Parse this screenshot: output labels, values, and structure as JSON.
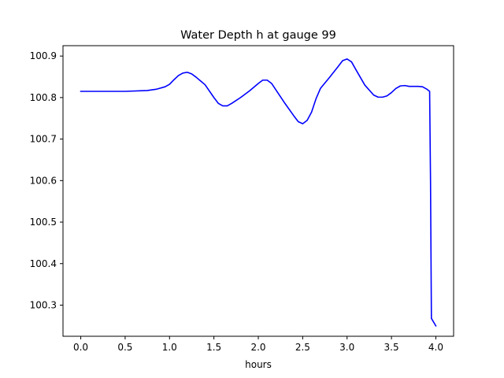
{
  "chart_data": {
    "type": "line",
    "title": "Water Depth h at gauge 99",
    "xlabel": "hours",
    "ylabel": "",
    "xlim": [
      -0.2,
      4.2
    ],
    "ylim": [
      100.225,
      100.925
    ],
    "x_ticks": [
      0.0,
      0.5,
      1.0,
      1.5,
      2.0,
      2.5,
      3.0,
      3.5,
      4.0
    ],
    "x_tick_labels": [
      "0.0",
      "0.5",
      "1.0",
      "1.5",
      "2.0",
      "2.5",
      "3.0",
      "3.5",
      "4.0"
    ],
    "y_ticks": [
      100.3,
      100.4,
      100.5,
      100.6,
      100.7,
      100.8,
      100.9
    ],
    "y_tick_labels": [
      "100.3",
      "100.4",
      "100.5",
      "100.6",
      "100.7",
      "100.8",
      "100.9"
    ],
    "grid": false,
    "series": [
      {
        "color": "#0000ff",
        "x": [
          0.0,
          0.25,
          0.5,
          0.75,
          0.85,
          0.95,
          1.0,
          1.05,
          1.1,
          1.15,
          1.2,
          1.25,
          1.3,
          1.4,
          1.5,
          1.55,
          1.6,
          1.65,
          1.7,
          1.8,
          1.9,
          2.0,
          2.05,
          2.1,
          2.15,
          2.2,
          2.3,
          2.4,
          2.45,
          2.5,
          2.55,
          2.6,
          2.65,
          2.7,
          2.8,
          2.9,
          2.95,
          3.0,
          3.05,
          3.1,
          3.2,
          3.3,
          3.35,
          3.4,
          3.45,
          3.5,
          3.55,
          3.6,
          3.65,
          3.7,
          3.8,
          3.85,
          3.9,
          3.93,
          3.94,
          3.95,
          4.0
        ],
        "y": [
          100.815,
          100.815,
          100.815,
          100.817,
          100.82,
          100.826,
          100.832,
          100.843,
          100.853,
          100.859,
          100.861,
          100.857,
          100.849,
          100.831,
          100.8,
          100.786,
          100.78,
          100.78,
          100.786,
          100.8,
          100.816,
          100.834,
          100.842,
          100.842,
          100.834,
          100.818,
          100.786,
          100.756,
          100.742,
          100.737,
          100.745,
          100.765,
          100.797,
          100.822,
          100.848,
          100.875,
          100.889,
          100.893,
          100.886,
          100.867,
          100.83,
          100.806,
          100.801,
          100.801,
          100.804,
          100.812,
          100.822,
          100.828,
          100.829,
          100.827,
          100.827,
          100.826,
          100.82,
          100.815,
          100.6,
          100.268,
          100.25
        ]
      }
    ]
  }
}
